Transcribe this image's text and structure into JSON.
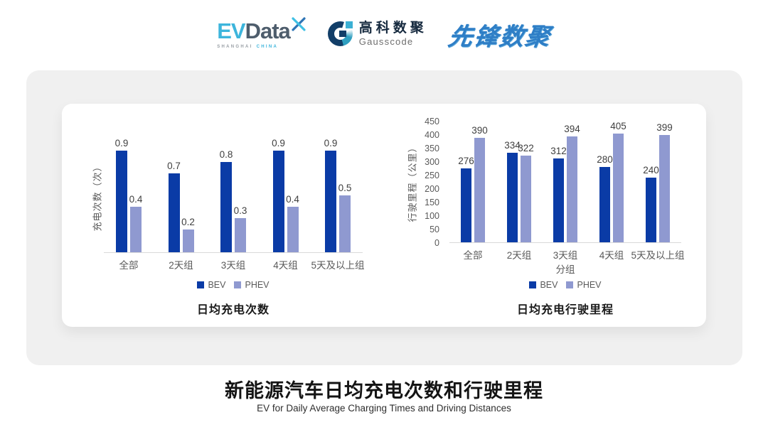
{
  "header": {
    "evdata": {
      "ev": "EV",
      "data": "Data",
      "sub_left": "SHANGHAI",
      "sub_right": "CHINA"
    },
    "gausscode": {
      "cn": "高科数聚",
      "en": "Gausscode"
    },
    "xianfeng": "先锋数聚"
  },
  "colors": {
    "bev": "#0a3ba6",
    "phev": "#8f99d0",
    "baseline": "#d9d9d9",
    "panel_bg": "#f0f0f0",
    "card_bg": "#ffffff",
    "evdata_accent": "#3db5dc",
    "gausscode_navy": "#123e68",
    "xianfeng_blue": "#2e7ec6"
  },
  "chart_data": [
    {
      "type": "bar",
      "title": "日均充电次数",
      "xlabel": "",
      "ylabel": "充电次数（次）",
      "categories": [
        "全部",
        "2天组",
        "3天组",
        "4天组",
        "5天及以上组"
      ],
      "series": [
        {
          "name": "BEV",
          "values": [
            0.9,
            0.7,
            0.8,
            0.9,
            0.9
          ]
        },
        {
          "name": "PHEV",
          "values": [
            0.4,
            0.2,
            0.3,
            0.4,
            0.5
          ]
        }
      ],
      "ylim": [
        0,
        1.0
      ],
      "yticks": [],
      "grid": false,
      "legend_position": "bottom"
    },
    {
      "type": "bar",
      "title": "日均充电行驶里程",
      "xlabel": "分组",
      "ylabel": "行驶里程（公里）",
      "categories": [
        "全部",
        "2天组",
        "3天组",
        "4天组",
        "5天及以上组"
      ],
      "series": [
        {
          "name": "BEV",
          "values": [
            276,
            334,
            312,
            280,
            240
          ]
        },
        {
          "name": "PHEV",
          "values": [
            390,
            322,
            394,
            405,
            399
          ]
        }
      ],
      "ylim": [
        0,
        450
      ],
      "yticks": [
        0,
        50,
        100,
        150,
        200,
        250,
        300,
        350,
        400,
        450
      ],
      "grid": false,
      "legend_position": "bottom"
    }
  ],
  "footer": {
    "title": "新能源汽车日均充电次数和行驶里程",
    "subtitle": "EV for Daily Average Charging Times and Driving Distances"
  }
}
